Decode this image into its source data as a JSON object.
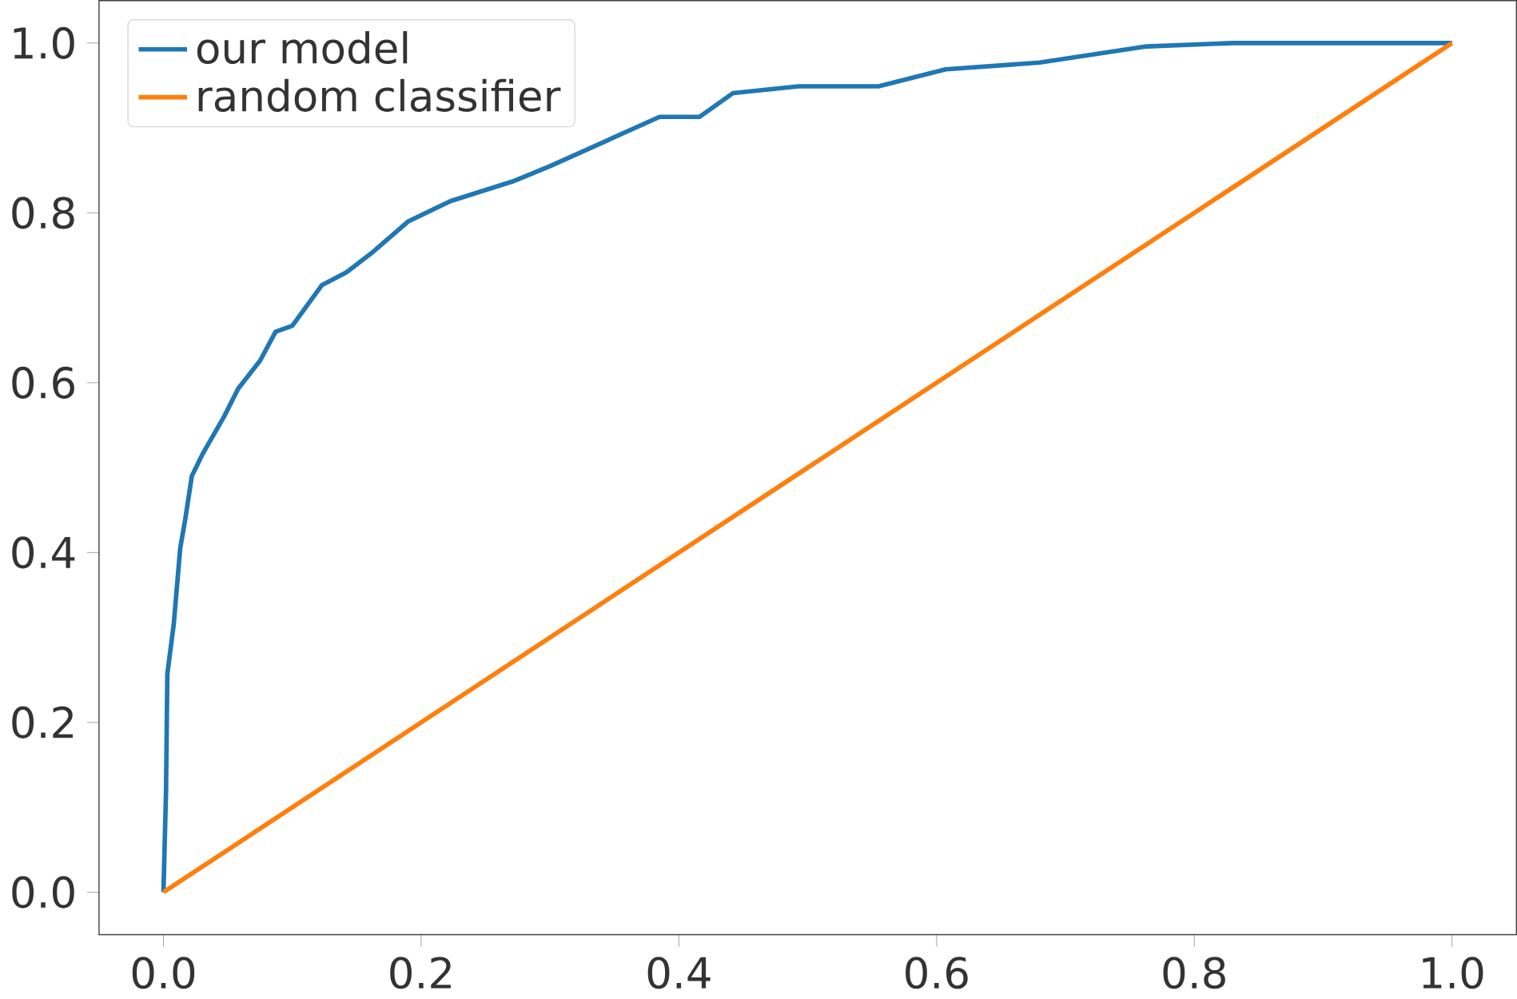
{
  "chart_data": {
    "type": "line",
    "xlim": [
      -0.05,
      1.05
    ],
    "ylim": [
      -0.05,
      1.05
    ],
    "xticks": [
      {
        "value": 0,
        "label": "0.0"
      },
      {
        "value": 0.2,
        "label": "0.2"
      },
      {
        "value": 0.4,
        "label": "0.4"
      },
      {
        "value": 0.6,
        "label": "0.6"
      },
      {
        "value": 0.8,
        "label": "0.8"
      },
      {
        "value": 1,
        "label": "1.0"
      }
    ],
    "yticks": [
      {
        "value": 0,
        "label": "0.0"
      },
      {
        "value": 0.2,
        "label": "0.2"
      },
      {
        "value": 0.4,
        "label": "0.4"
      },
      {
        "value": 0.6,
        "label": "0.6"
      },
      {
        "value": 0.8,
        "label": "0.8"
      },
      {
        "value": 1,
        "label": "1.0"
      }
    ],
    "legend": "top left",
    "grid": false,
    "marker": "none",
    "line_style": "solid",
    "series": [
      {
        "name": "our model",
        "color": "#1f77b4",
        "x": [
          0,
          0.002,
          0.003,
          0.008,
          0.013,
          0.017,
          0.022,
          0.03,
          0.047,
          0.058,
          0.075,
          0.087,
          0.1,
          0.123,
          0.142,
          0.161,
          0.19,
          0.223,
          0.271,
          0.3,
          0.385,
          0.416,
          0.442,
          0.493,
          0.555,
          0.607,
          0.68,
          0.763,
          0.83,
          1.0
        ],
        "values": [
          0,
          0.12,
          0.257,
          0.316,
          0.405,
          0.44,
          0.49,
          0.515,
          0.56,
          0.593,
          0.626,
          0.66,
          0.667,
          0.715,
          0.73,
          0.752,
          0.79,
          0.814,
          0.837,
          0.855,
          0.913,
          0.913,
          0.941,
          0.949,
          0.949,
          0.969,
          0.977,
          0.996,
          1.0,
          1.0
        ]
      },
      {
        "name": "random classifier",
        "color": "#ff7f0e",
        "x": [
          0,
          1
        ],
        "values": [
          0,
          1
        ]
      }
    ]
  }
}
